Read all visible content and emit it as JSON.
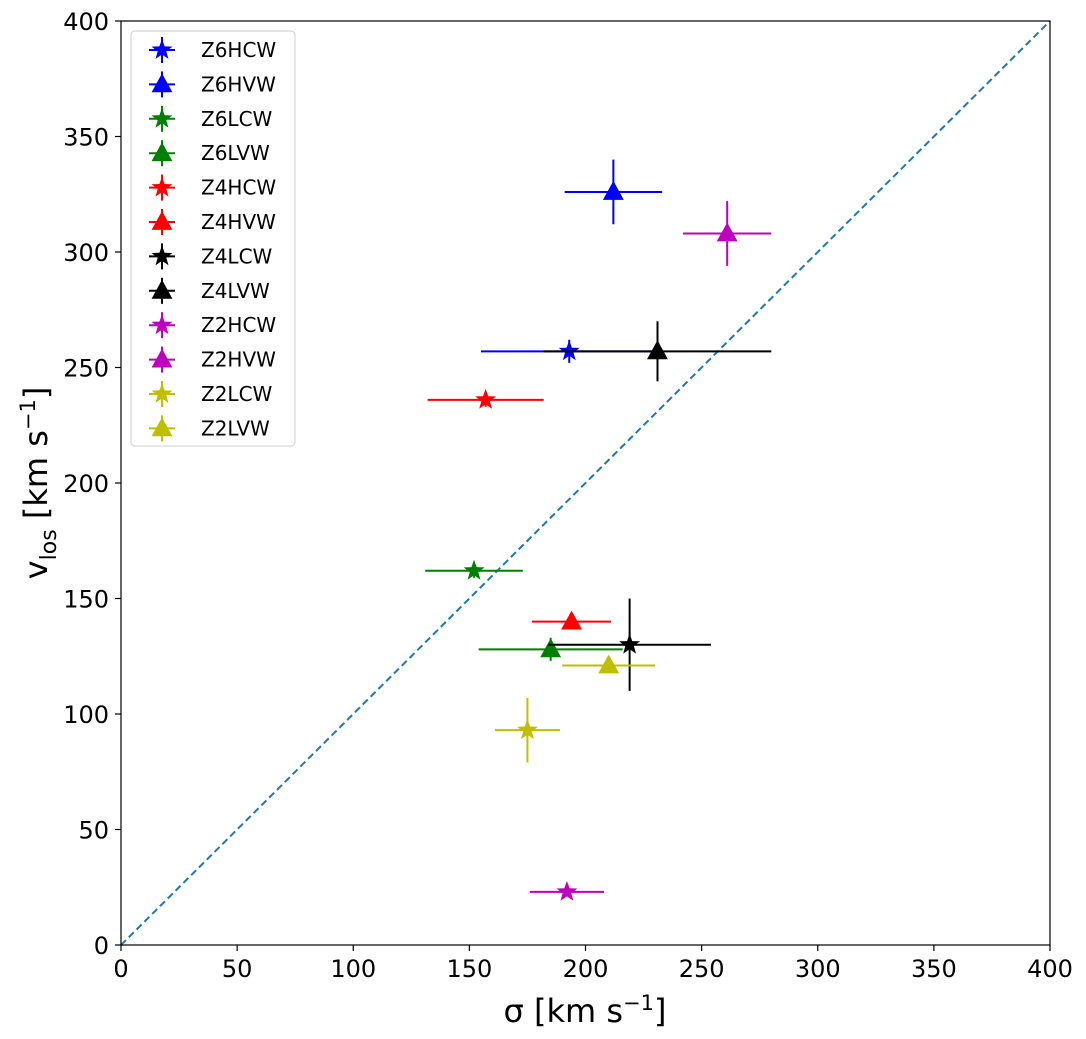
{
  "chart_data": {
    "type": "scatter",
    "title": "",
    "xlabel": "σ [km s⁻¹]",
    "ylabel": "v_los [km s⁻¹]",
    "xlim": [
      0,
      400
    ],
    "ylim": [
      0,
      400
    ],
    "xticks": [
      0,
      50,
      100,
      150,
      200,
      250,
      300,
      350,
      400
    ],
    "yticks": [
      0,
      50,
      100,
      150,
      200,
      250,
      300,
      350,
      400
    ],
    "grid": false,
    "legend_position": "top-left",
    "reference_line": {
      "name": "one-to-one",
      "x": [
        0,
        400
      ],
      "y": [
        0,
        400
      ],
      "color": "#1f77b4",
      "style": "dashed"
    },
    "series": [
      {
        "name": "Z6HCW",
        "marker": "star",
        "color": "#0000ff",
        "x": 193,
        "y": 257,
        "xerr": [
          38,
          38
        ],
        "yerr": [
          5,
          5
        ]
      },
      {
        "name": "Z6HVW",
        "marker": "triangle",
        "color": "#0000ff",
        "x": 212,
        "y": 326,
        "xerr": [
          21,
          21
        ],
        "yerr": [
          14,
          14
        ]
      },
      {
        "name": "Z6LCW",
        "marker": "star",
        "color": "#008000",
        "x": 152,
        "y": 162,
        "xerr": [
          21,
          21
        ],
        "yerr": [
          3,
          3
        ]
      },
      {
        "name": "Z6LVW",
        "marker": "triangle",
        "color": "#008000",
        "x": 185,
        "y": 128,
        "xerr": [
          31,
          31
        ],
        "yerr": [
          5,
          5
        ]
      },
      {
        "name": "Z4HCW",
        "marker": "star",
        "color": "#ff0000",
        "x": 157,
        "y": 236,
        "xerr": [
          25,
          25
        ],
        "yerr": [
          3,
          3
        ]
      },
      {
        "name": "Z4HVW",
        "marker": "triangle",
        "color": "#ff0000",
        "x": 194,
        "y": 140,
        "xerr": [
          17,
          17
        ],
        "yerr": [
          3,
          3
        ]
      },
      {
        "name": "Z4LCW",
        "marker": "star",
        "color": "#000000",
        "x": 219,
        "y": 130,
        "xerr": [
          35,
          35
        ],
        "yerr": [
          20,
          20
        ]
      },
      {
        "name": "Z4LVW",
        "marker": "triangle",
        "color": "#000000",
        "x": 231,
        "y": 257,
        "xerr": [
          49,
          49
        ],
        "yerr": [
          13,
          13
        ]
      },
      {
        "name": "Z2HCW",
        "marker": "star",
        "color": "#bf00bf",
        "x": 192,
        "y": 23,
        "xerr": [
          16,
          16
        ],
        "yerr": [
          2,
          2
        ]
      },
      {
        "name": "Z2HVW",
        "marker": "triangle",
        "color": "#bf00bf",
        "x": 261,
        "y": 308,
        "xerr": [
          19,
          19
        ],
        "yerr": [
          14,
          14
        ]
      },
      {
        "name": "Z2LCW",
        "marker": "star",
        "color": "#bfbf00",
        "x": 175,
        "y": 93,
        "xerr": [
          14,
          14
        ],
        "yerr": [
          14,
          14
        ]
      },
      {
        "name": "Z2LVW",
        "marker": "triangle",
        "color": "#bfbf00",
        "x": 210,
        "y": 121,
        "xerr": [
          20,
          20
        ],
        "yerr": [
          3,
          3
        ]
      }
    ]
  }
}
